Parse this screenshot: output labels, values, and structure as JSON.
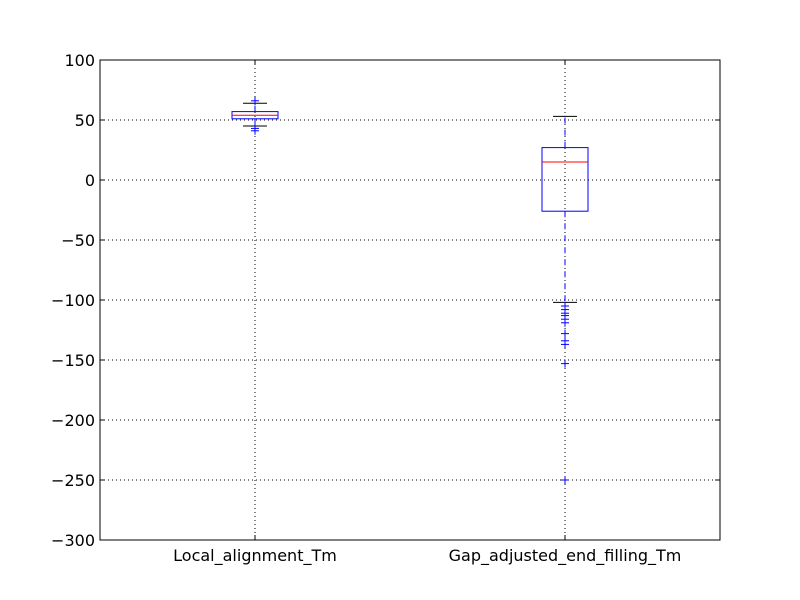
{
  "chart_data": {
    "type": "box",
    "categories": [
      "Local_alignment_Tm",
      "Gap_adjusted_end_filling_Tm"
    ],
    "ylim": [
      -300,
      100
    ],
    "yticks": [
      100,
      50,
      0,
      -50,
      -100,
      -150,
      -200,
      -250,
      -300
    ],
    "ytick_labels": [
      "100",
      "50",
      "0",
      "−50",
      "−100",
      "−150",
      "−200",
      "−250",
      "−300"
    ],
    "grid": true,
    "boxes": [
      {
        "whisker_low": 45,
        "q1": 51,
        "median": 54,
        "q3": 57,
        "whisker_high": 64,
        "outliers": [
          66,
          43,
          41
        ]
      },
      {
        "whisker_low": -102,
        "q1": -26,
        "median": 15,
        "q3": 27,
        "whisker_high": 53,
        "outliers": [
          -105,
          -108,
          -111,
          -113,
          -116,
          -119,
          -128,
          -134,
          -137,
          -153,
          -250
        ]
      }
    ],
    "colors": {
      "box": "#0000ff",
      "median": "#ff0000",
      "whisker": "#0000ff",
      "cap": "#000000",
      "outlier": "#0000ff",
      "grid": "#000000"
    }
  }
}
